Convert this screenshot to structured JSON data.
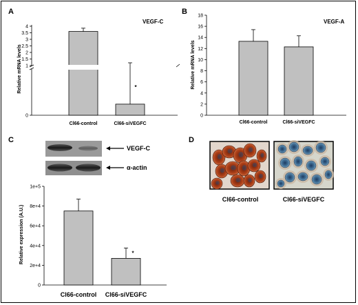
{
  "panels": {
    "A": "A",
    "B": "B",
    "C": "C",
    "D": "D"
  },
  "chart_data": [
    {
      "panel": "A",
      "type": "bar",
      "title": "VEGF-C",
      "ylabel": "Relative mRNA levels",
      "categories": [
        "Cl66-control",
        "Cl66-siVEGFC"
      ],
      "values": [
        3.6,
        0.12
      ],
      "errors": [
        0.25,
        0.7
      ],
      "significance": [
        "",
        "*"
      ],
      "yticks_upper": [
        1,
        1.5,
        2,
        2.5,
        3,
        3.5,
        4
      ],
      "yticks_lower": [
        0
      ],
      "axis_break": true,
      "ylim": [
        0,
        4.5
      ]
    },
    {
      "panel": "B",
      "type": "bar",
      "title": "VEGF-A",
      "ylabel": "Relative mRNA levels",
      "categories": [
        "Cl66-control",
        "Cl66-siVEGFC"
      ],
      "values": [
        13.3,
        12.3
      ],
      "errors": [
        2.1,
        2.0
      ],
      "yticks": [
        0,
        2,
        4,
        6,
        8,
        10,
        12,
        14,
        16,
        18
      ],
      "ylim": [
        0,
        18
      ]
    },
    {
      "panel": "C",
      "type": "bar",
      "title": "",
      "ylabel": "Relative expression (A.U.)",
      "categories": [
        "Cl66-control",
        "Cl66-siVEGFC"
      ],
      "values": [
        75000,
        27000
      ],
      "errors": [
        12000,
        10500
      ],
      "significance": [
        "",
        "*"
      ],
      "yticks": [
        "0",
        "2e+4",
        "4e+4",
        "6e+4",
        "8e+4",
        "1e+5"
      ],
      "ylim": [
        0,
        100000
      ]
    }
  ],
  "blot": {
    "labels": [
      "VEGF-C",
      "α-actin"
    ]
  },
  "micrographs": {
    "labels": [
      "Cl66-control",
      "Cl66-siVEGFC"
    ]
  },
  "colors": {
    "bar_fill": "#c0c0c0",
    "bar_stroke": "#000000"
  }
}
